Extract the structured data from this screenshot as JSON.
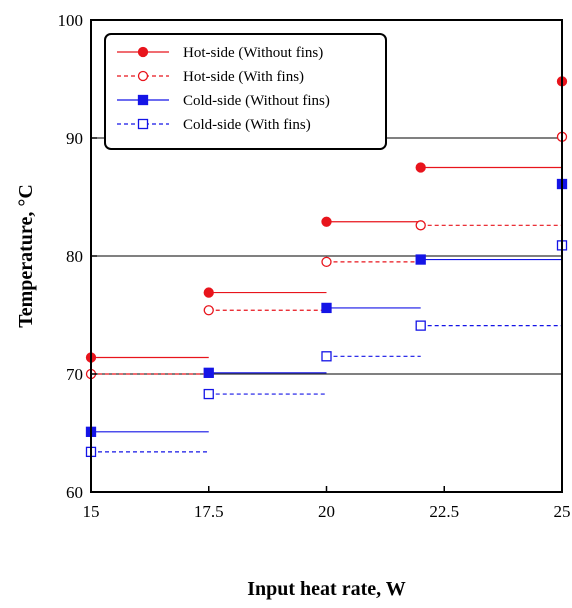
{
  "chart_data": {
    "type": "line",
    "xlabel": "Input heat rate, W",
    "ylabel": "Temperature, °C",
    "xlim": [
      15,
      25
    ],
    "ylim": [
      60,
      100
    ],
    "x_ticks": [
      15,
      17.5,
      20,
      22.5,
      25
    ],
    "x_tick_labels": [
      "15",
      "17.5",
      "20",
      "22.5",
      "25"
    ],
    "y_ticks": [
      60,
      70,
      80,
      90,
      100
    ],
    "y_tick_labels": [
      "60",
      "70",
      "80",
      "90",
      "100"
    ],
    "horizontal_gridlines": [
      70,
      80,
      90
    ],
    "legend_position": "top-left",
    "series": [
      {
        "name": "Hot-side (Without fins)",
        "color": "#e8141c",
        "marker": "filled-circle",
        "line": "solid",
        "points": [
          {
            "x": 15,
            "y": 71.4
          },
          {
            "x": 17.5,
            "y": 76.9
          },
          {
            "x": 20,
            "y": 82.9
          },
          {
            "x": 22,
            "y": 87.5
          },
          {
            "x": 25,
            "y": 94.8
          }
        ]
      },
      {
        "name": "Hot-side (With fins)",
        "color": "#e8141c",
        "marker": "open-circle",
        "line": "dashed",
        "points": [
          {
            "x": 15,
            "y": 70.0
          },
          {
            "x": 17.5,
            "y": 75.4
          },
          {
            "x": 20,
            "y": 79.5
          },
          {
            "x": 22,
            "y": 82.6
          },
          {
            "x": 25,
            "y": 90.1
          }
        ]
      },
      {
        "name": "Cold-side (Without fins)",
        "color": "#1414e6",
        "marker": "filled-square",
        "line": "solid",
        "points": [
          {
            "x": 15,
            "y": 65.1
          },
          {
            "x": 17.5,
            "y": 70.1
          },
          {
            "x": 20,
            "y": 75.6
          },
          {
            "x": 22,
            "y": 79.7
          },
          {
            "x": 25,
            "y": 86.1
          }
        ]
      },
      {
        "name": "Cold-side (With fins)",
        "color": "#1414e6",
        "marker": "open-square",
        "line": "dashed",
        "points": [
          {
            "x": 15,
            "y": 63.4
          },
          {
            "x": 17.5,
            "y": 68.3
          },
          {
            "x": 20,
            "y": 71.5
          },
          {
            "x": 22,
            "y": 74.1
          },
          {
            "x": 25,
            "y": 80.9
          }
        ]
      }
    ]
  }
}
